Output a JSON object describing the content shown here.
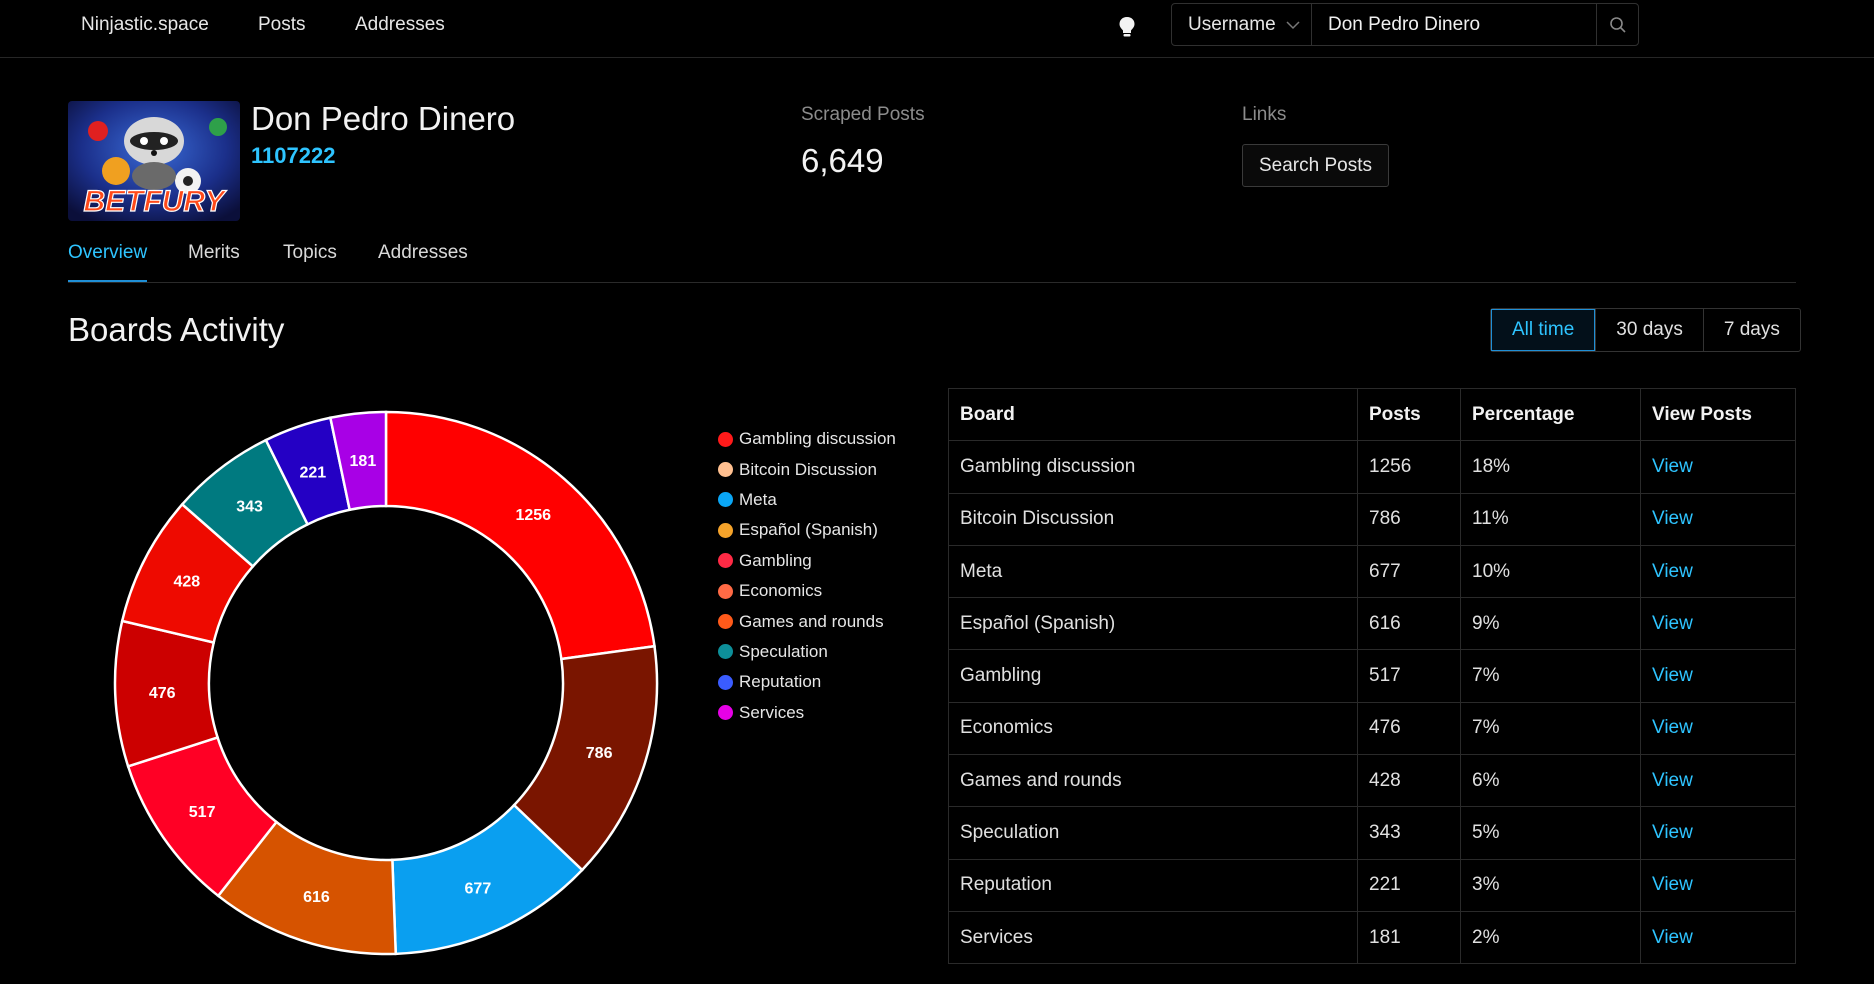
{
  "nav": {
    "brand": "Ninjastic.space",
    "links": [
      "Posts",
      "Addresses"
    ]
  },
  "search": {
    "type_label": "Username",
    "value": "Don Pedro Dinero"
  },
  "profile": {
    "name": "Don Pedro Dinero",
    "id": "1107222",
    "avatar_text": "BETFURY",
    "scraped_label": "Scraped Posts",
    "scraped_value": "6,649",
    "links_label": "Links",
    "search_posts_label": "Search Posts"
  },
  "tabs": [
    "Overview",
    "Merits",
    "Topics",
    "Addresses"
  ],
  "section_title": "Boards Activity",
  "time_ranges": {
    "all": "All time",
    "d30": "30 days",
    "d7": "7 days"
  },
  "colors": {
    "accent": "#2ec4ff"
  },
  "chart_data": {
    "type": "donut",
    "series": [
      {
        "label": "Gambling discussion",
        "value": 1256,
        "color": "#ff0000",
        "legend_color": "#ff1a1a"
      },
      {
        "label": "Bitcoin Discussion",
        "value": 786,
        "color": "#7a1500",
        "legend_color": "#ffc090"
      },
      {
        "label": "Meta",
        "value": 677,
        "color": "#0a9ff0",
        "legend_color": "#0aa6f5"
      },
      {
        "label": "Español (Spanish)",
        "value": 616,
        "color": "#d65300",
        "legend_color": "#f5a32a"
      },
      {
        "label": "Gambling",
        "value": 517,
        "color": "#ff0025",
        "legend_color": "#ff2a45"
      },
      {
        "label": "Economics",
        "value": 476,
        "color": "#cc0000",
        "legend_color": "#ff6a45"
      },
      {
        "label": "Games and rounds",
        "value": 428,
        "color": "#ee0a00",
        "legend_color": "#ff5a1a"
      },
      {
        "label": "Speculation",
        "value": 343,
        "color": "#007a80",
        "legend_color": "#0d8f99"
      },
      {
        "label": "Reputation",
        "value": 221,
        "color": "#2400c4",
        "legend_color": "#3a5cff"
      },
      {
        "label": "Services",
        "value": 181,
        "color": "#a800e6",
        "legend_color": "#e600e6"
      }
    ]
  },
  "table": {
    "headers": [
      "Board",
      "Posts",
      "Percentage",
      "View Posts"
    ],
    "rows": [
      {
        "board": "Gambling discussion",
        "posts": "1256",
        "pct": "18%",
        "view": "View"
      },
      {
        "board": "Bitcoin Discussion",
        "posts": "786",
        "pct": "11%",
        "view": "View"
      },
      {
        "board": "Meta",
        "posts": "677",
        "pct": "10%",
        "view": "View"
      },
      {
        "board": "Español (Spanish)",
        "posts": "616",
        "pct": "9%",
        "view": "View"
      },
      {
        "board": "Gambling",
        "posts": "517",
        "pct": "7%",
        "view": "View"
      },
      {
        "board": "Economics",
        "posts": "476",
        "pct": "7%",
        "view": "View"
      },
      {
        "board": "Games and rounds",
        "posts": "428",
        "pct": "6%",
        "view": "View"
      },
      {
        "board": "Speculation",
        "posts": "343",
        "pct": "5%",
        "view": "View"
      },
      {
        "board": "Reputation",
        "posts": "221",
        "pct": "3%",
        "view": "View"
      },
      {
        "board": "Services",
        "posts": "181",
        "pct": "2%",
        "view": "View"
      }
    ]
  }
}
